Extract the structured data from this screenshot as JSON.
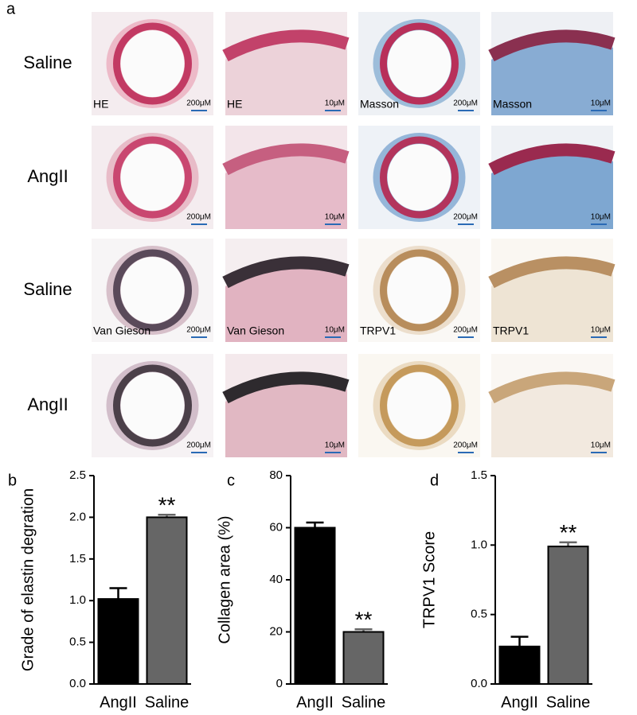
{
  "figure_a": {
    "label": "a",
    "rows": [
      {
        "label": "Saline",
        "images": [
          {
            "stain": "HE",
            "scale": "200μM"
          },
          {
            "stain": "HE",
            "scale": "10μM"
          },
          {
            "stain": "Masson",
            "scale": "200μM"
          },
          {
            "stain": "Masson",
            "scale": "10μM"
          }
        ]
      },
      {
        "label": "AngII",
        "images": [
          {
            "scale": "200μM"
          },
          {
            "scale": "10μM"
          },
          {
            "scale": "200μM"
          },
          {
            "scale": "10μM"
          }
        ]
      },
      {
        "label": "Saline",
        "images": [
          {
            "stain": "Van Gieson",
            "scale": "200μM"
          },
          {
            "stain": "Van Gieson",
            "scale": "10μM"
          },
          {
            "stain": "TRPV1",
            "scale": "200μM"
          },
          {
            "stain": "TRPV1",
            "scale": "10μM"
          }
        ]
      },
      {
        "label": "AngII",
        "images": [
          {
            "scale": "200μM"
          },
          {
            "scale": "10μM"
          },
          {
            "scale": "200μM"
          },
          {
            "scale": "10μM"
          }
        ]
      }
    ]
  },
  "chart_data": [
    {
      "type": "bar",
      "label": "b",
      "ylabel": "Grade of elastin degration",
      "categories": [
        "AngII",
        "Saline"
      ],
      "values": [
        1.02,
        2.0
      ],
      "errors": [
        0.13,
        0.03
      ],
      "colors": [
        "#000000",
        "#666666"
      ],
      "ylim": [
        0,
        2.5
      ],
      "yticks": [
        {
          "value": 0,
          "label": "0.0"
        },
        {
          "value": 0.5,
          "label": "0.5"
        },
        {
          "value": 1,
          "label": "1.0"
        },
        {
          "value": 1.5,
          "label": "1.5"
        },
        {
          "value": 2,
          "label": "2.0"
        },
        {
          "value": 2.5,
          "label": "2.5"
        }
      ],
      "annotations": [
        {
          "text": "**",
          "at": 1
        }
      ]
    },
    {
      "type": "bar",
      "label": "c",
      "ylabel": "Collagen area (%)",
      "categories": [
        "AngII",
        "Saline"
      ],
      "values": [
        60,
        20
      ],
      "errors": [
        2,
        1
      ],
      "colors": [
        "#000000",
        "#666666"
      ],
      "ylim": [
        0,
        80
      ],
      "yticks": [
        0,
        20,
        40,
        60,
        80
      ],
      "annotations": [
        {
          "text": "**",
          "at": 1
        }
      ]
    },
    {
      "type": "bar",
      "label": "d",
      "ylabel": "TRPV1 Score",
      "categories": [
        "AngII",
        "Saline"
      ],
      "values": [
        0.27,
        0.99
      ],
      "errors": [
        0.07,
        0.03
      ],
      "colors": [
        "#000000",
        "#666666"
      ],
      "ylim": [
        0,
        1.5
      ],
      "yticks": [
        {
          "value": 0,
          "label": "0.0"
        },
        {
          "value": 0.5,
          "label": "0.5"
        },
        {
          "value": 1,
          "label": "1.0"
        },
        {
          "value": 1.5,
          "label": "1.5"
        }
      ],
      "annotations": [
        {
          "text": "**",
          "at": 1
        }
      ]
    }
  ]
}
